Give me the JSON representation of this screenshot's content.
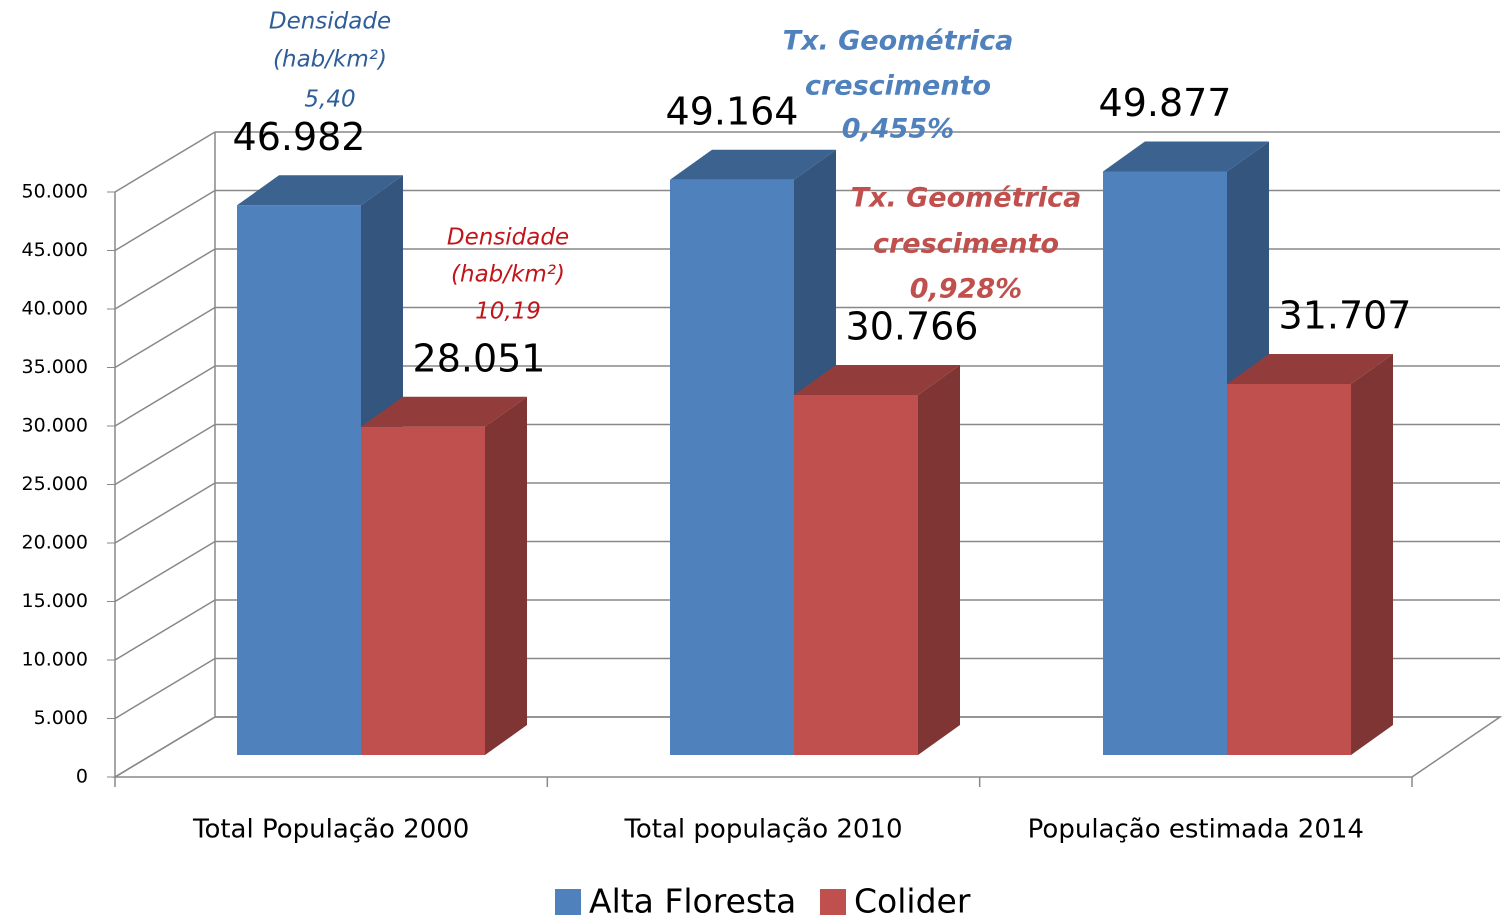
{
  "chart_data": {
    "type": "bar3d",
    "categories": [
      "Total População 2000",
      "Total população 2010",
      "População estimada 2014"
    ],
    "series": [
      {
        "name": "Alta Floresta",
        "color": "#4f81bd",
        "values": [
          46982,
          49164,
          49877
        ],
        "value_labels": [
          "46.982",
          "49.164",
          "49.877"
        ]
      },
      {
        "name": "Colider",
        "color": "#c0504d",
        "values": [
          28051,
          30766,
          31707
        ],
        "value_labels": [
          "28.051",
          "30.766",
          "31.707"
        ]
      }
    ],
    "ylim": [
      0,
      50000
    ],
    "yticks": [
      0,
      {
        "value": 5000,
        "label": "5.000"
      },
      {
        "value": 10000,
        "label": "10.000"
      },
      {
        "value": 15000,
        "label": "15.000"
      },
      {
        "value": 20000,
        "label": "20.000"
      },
      {
        "value": 25000,
        "label": "25.000"
      },
      {
        "value": 30000,
        "label": "30.000"
      },
      {
        "value": 35000,
        "label": "35.000"
      },
      {
        "value": 40000,
        "label": "40.000"
      },
      {
        "value": 45000,
        "label": "45.000"
      },
      {
        "value": 50000,
        "label": "50.000"
      }
    ],
    "grid": true,
    "legend": "bottom",
    "annotations": [
      {
        "lines": [
          "Densidade",
          "(hab/km²)",
          "5,40"
        ],
        "color": "#2e5d9a"
      },
      {
        "lines": [
          "Densidade",
          "(hab/km²)",
          "10,19"
        ],
        "color": "#c0161b"
      },
      {
        "lines": [
          "Tx. Geométrica",
          "crescimento",
          "0,455%"
        ],
        "color": "#4f81bd"
      },
      {
        "lines": [
          "Tx. Geométrica",
          "crescimento",
          "0,928%"
        ],
        "color": "#c0504d"
      }
    ]
  }
}
